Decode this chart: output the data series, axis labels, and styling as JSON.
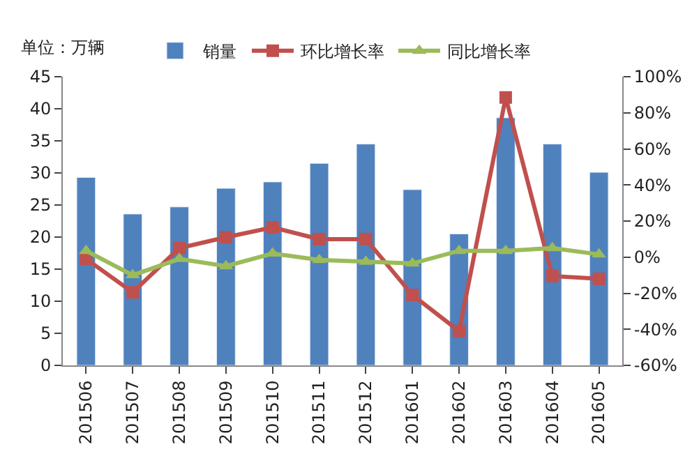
{
  "chart_data": {
    "type": "bar",
    "ylabel": "单位：万辆",
    "categories": [
      "201506",
      "201507",
      "201508",
      "201509",
      "201510",
      "201511",
      "201512",
      "201601",
      "201602",
      "201603",
      "201604",
      "201605"
    ],
    "series": [
      {
        "name": "销量",
        "color": "#4f81bd",
        "values": [
          29.3,
          23.6,
          24.7,
          27.6,
          28.6,
          31.5,
          34.5,
          27.4,
          20.5,
          38.6,
          34.5,
          30.1
        ]
      },
      {
        "name": "环比增长率",
        "type": "line",
        "axis": "y2",
        "marker": "square",
        "color": "#c0504d",
        "values": [
          -1,
          -19.5,
          5,
          11,
          16.5,
          10,
          10,
          -21,
          -41,
          88.5,
          -10.5,
          -12
        ]
      },
      {
        "name": "同比增长率",
        "type": "line",
        "axis": "y2",
        "marker": "triangle",
        "color": "#9bbb59",
        "values": [
          3.5,
          -10,
          -1,
          -5,
          2,
          -1.5,
          -2.5,
          -3.5,
          3.5,
          3.5,
          5,
          1.5
        ]
      }
    ],
    "ylim": [
      0,
      45
    ],
    "yticks": [
      0,
      5,
      10,
      15,
      20,
      25,
      30,
      35,
      40,
      45
    ],
    "y2lim": [
      -60,
      100
    ],
    "y2ticks": [
      {
        "value": -60,
        "label": "-60%"
      },
      {
        "value": -40,
        "label": "-40%"
      },
      {
        "value": -20,
        "label": "-20%"
      },
      {
        "value": 0,
        "label": "0%"
      },
      {
        "value": 20,
        "label": "20%"
      },
      {
        "value": 40,
        "label": "40%"
      },
      {
        "value": 60,
        "label": "60%"
      },
      {
        "value": 80,
        "label": "80%"
      },
      {
        "value": 100,
        "label": "100%"
      }
    ],
    "legend": "top",
    "line_style": "solid"
  }
}
